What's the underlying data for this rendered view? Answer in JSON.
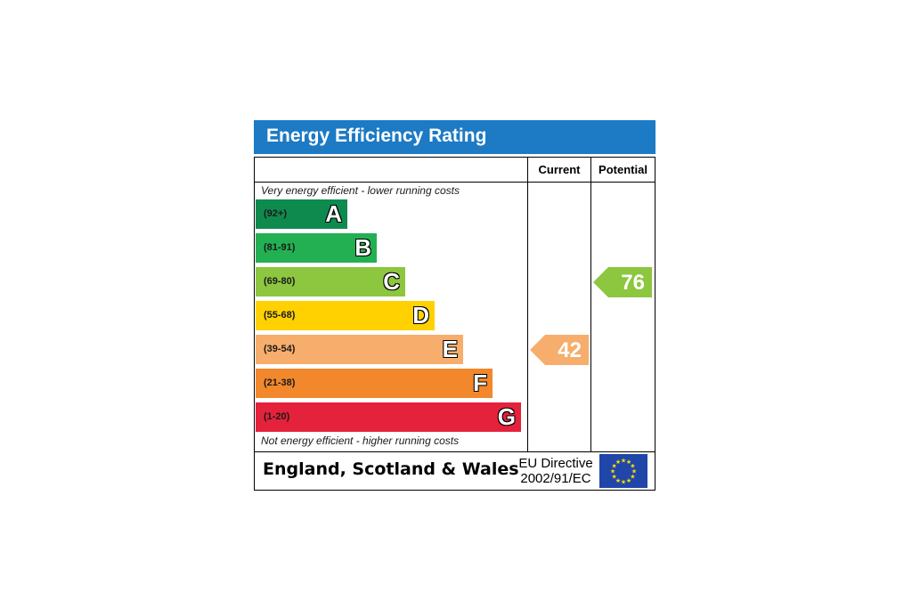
{
  "chart_data": {
    "type": "bar",
    "title": "Energy Efficiency Rating",
    "columns": [
      "Current",
      "Potential"
    ],
    "top_note": "Very energy efficient - lower running costs",
    "bottom_note": "Not energy efficient - higher running costs",
    "bands": [
      {
        "range": "(92+)",
        "letter": "A",
        "color": "#0f8a4f"
      },
      {
        "range": "(81-91)",
        "letter": "B",
        "color": "#23b052"
      },
      {
        "range": "(69-80)",
        "letter": "C",
        "color": "#8dc63f"
      },
      {
        "range": "(55-68)",
        "letter": "D",
        "color": "#ffd100"
      },
      {
        "range": "(39-54)",
        "letter": "E",
        "color": "#f7ad6b"
      },
      {
        "range": "(21-38)",
        "letter": "F",
        "color": "#f2872b"
      },
      {
        "range": "(1-20)",
        "letter": "G",
        "color": "#e4223b"
      }
    ],
    "current": {
      "value": 42,
      "band": "E",
      "color": "#f7ad6b"
    },
    "potential": {
      "value": 76,
      "band": "C",
      "color": "#8dc63f"
    }
  },
  "footer": {
    "region": "England, Scotland & Wales",
    "directive_line1": "EU Directive",
    "directive_line2": "2002/91/EC",
    "flag_color": "#1f46a8",
    "star_color": "#ffde00"
  }
}
